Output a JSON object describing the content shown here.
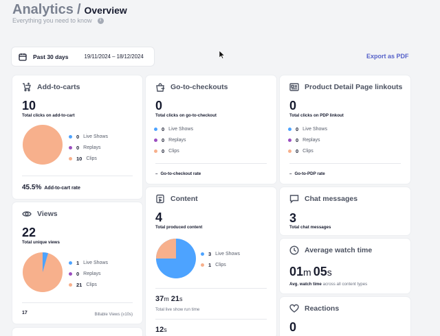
{
  "header": {
    "title_main": "Analytics",
    "title_sep": "/",
    "title_sub": "Overview",
    "subtitle": "Everything you need to know"
  },
  "date_range": {
    "label": "Past 30 days",
    "range": "19/11/2024 – 18/12/2024"
  },
  "export_label": "Export as PDF",
  "colors": {
    "live": "#4da3ff",
    "replays": "#9b4fc0",
    "clips": "#f7b08c",
    "accent": "#5561c9"
  },
  "legend_labels": {
    "live": "Live Shows",
    "replays": "Replays",
    "clips": "Clips"
  },
  "add_to_carts": {
    "title": "Add-to-carts",
    "value": "10",
    "caption": "Total clicks on add-to-cart",
    "live": "0",
    "replays": "0",
    "clips": "10",
    "rate_value": "45.5%",
    "rate_label": "Add-to-cart rate"
  },
  "views": {
    "title": "Views",
    "value": "22",
    "caption": "Total unique views",
    "live": "1",
    "replays": "0",
    "clips": "21",
    "billable_value": "17",
    "billable_label": "Billable Views (≥10s)"
  },
  "go_to_checkouts": {
    "title": "Go-to-checkouts",
    "value": "0",
    "caption": "Total clicks on go-to-checkout",
    "live": "0",
    "replays": "0",
    "clips": "0",
    "rate_value": "–",
    "rate_label": "Go-to-checkout rate"
  },
  "content": {
    "title": "Content",
    "value": "4",
    "caption": "Total produced content",
    "live": "3",
    "clips": "1",
    "runtime_h": "37",
    "runtime_h_unit": "m",
    "runtime_m": "21",
    "runtime_m_unit": "s",
    "runtime_label": "Total live show run time",
    "next_value": "12",
    "next_unit": "s"
  },
  "pdp": {
    "title": "Product Detail Page linkouts",
    "value": "0",
    "caption": "Total clicks on PDP linkout",
    "live": "0",
    "replays": "0",
    "clips": "0",
    "rate_value": "–",
    "rate_label": "Go-to-PDP rate"
  },
  "chat": {
    "title": "Chat messages",
    "value": "3",
    "caption": "Total chat messages"
  },
  "watch_time": {
    "title": "Average watch time",
    "min": "01",
    "min_unit": "m",
    "sec": "05",
    "sec_unit": "s",
    "caption_bold": "Avg. watch time",
    "caption_rest": "across all content types"
  },
  "reactions": {
    "title": "Reactions",
    "value": "0"
  }
}
